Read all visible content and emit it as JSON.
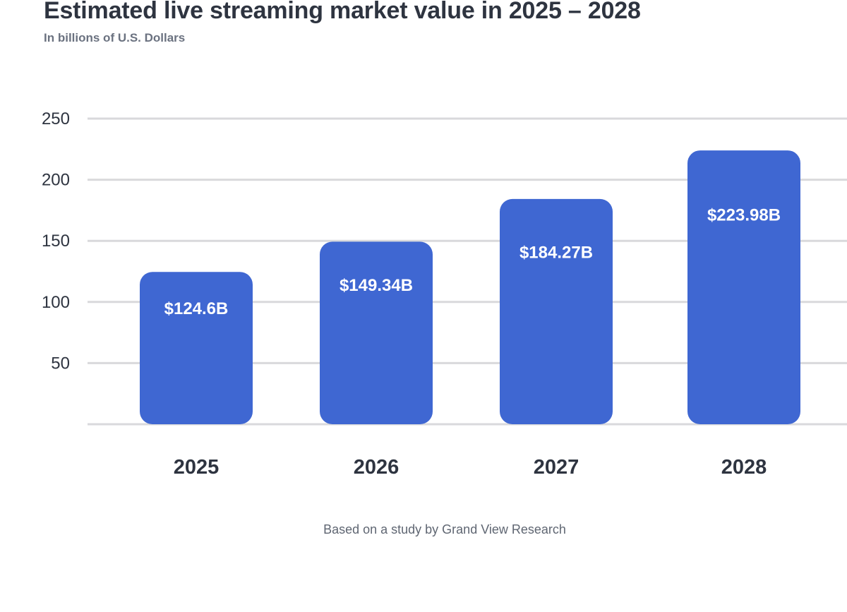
{
  "header": {
    "title": "Estimated live streaming market value in 2025 – 2028",
    "subtitle": "In billions of U.S. Dollars"
  },
  "footer": {
    "source": "Based on a study by Grand View Research"
  },
  "colors": {
    "bar": "#3f67d2",
    "grid": "#d9d9dc",
    "text": "#2e3440",
    "label": "#ffffff"
  },
  "chart_data": {
    "type": "bar",
    "title": "Estimated live streaming market value in 2025 – 2028",
    "subtitle": "In billions of U.S. Dollars",
    "xlabel": "",
    "ylabel": "",
    "categories": [
      "2025",
      "2026",
      "2027",
      "2028"
    ],
    "values": [
      124.6,
      149.34,
      184.27,
      223.98
    ],
    "value_labels": [
      "$124.6B",
      "$149.34B",
      "$184.27B",
      "$223.98B"
    ],
    "ylim": [
      0,
      250
    ],
    "yticks": [
      50,
      100,
      150,
      200,
      250
    ],
    "grid": true,
    "legend": "none"
  }
}
